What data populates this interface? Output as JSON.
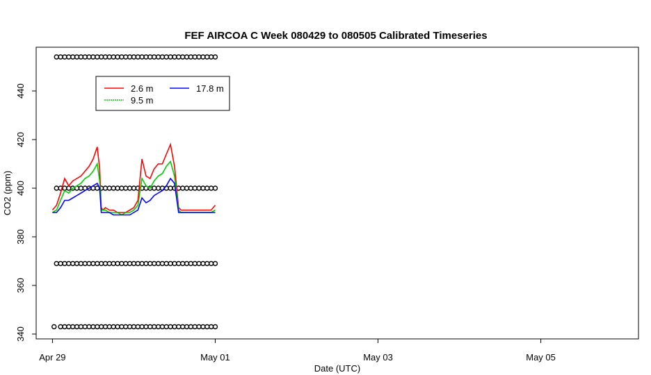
{
  "chart_data": {
    "type": "line",
    "title": "FEF AIRCOA C  Week 080429 to 080505  Calibrated Timeseries",
    "xlabel": "Date (UTC)",
    "ylabel": "CO2 (ppm)",
    "x_ticks": [
      "Apr 29",
      "May 01",
      "May 03",
      "May 05"
    ],
    "y_ticks": [
      340,
      360,
      380,
      400,
      420,
      440
    ],
    "xlim_days": [
      -0.2,
      7.2
    ],
    "ylim": [
      338,
      458
    ],
    "legend_position": "top-left",
    "series": [
      {
        "name": "2.6 m",
        "color": "#ff0000",
        "x": [
          0.0,
          0.05,
          0.1,
          0.15,
          0.2,
          0.25,
          0.3,
          0.35,
          0.4,
          0.45,
          0.5,
          0.55,
          0.58,
          0.6,
          0.62,
          0.65,
          0.7,
          0.75,
          0.8,
          0.85,
          0.9,
          0.95,
          1.0,
          1.05,
          1.1,
          1.15,
          1.2,
          1.25,
          1.3,
          1.35,
          1.4,
          1.45,
          1.5,
          1.55,
          1.58,
          1.6,
          1.62,
          1.65,
          1.7,
          1.75,
          1.8,
          1.85,
          1.9,
          1.95,
          2.0
        ],
        "values": [
          391,
          393,
          398,
          404,
          401,
          403,
          404,
          405,
          407,
          409,
          412,
          417,
          408,
          392,
          391,
          392,
          391,
          391,
          390,
          390,
          390,
          391,
          392,
          395,
          412,
          405,
          404,
          408,
          410,
          410,
          414,
          418,
          409,
          392,
          391,
          391,
          391,
          391,
          391,
          391,
          391,
          391,
          391,
          391,
          393
        ]
      },
      {
        "name": "9.5 m",
        "color": "#00cc00",
        "x": [
          0.0,
          0.05,
          0.1,
          0.15,
          0.2,
          0.25,
          0.3,
          0.35,
          0.4,
          0.45,
          0.5,
          0.55,
          0.58,
          0.6,
          0.62,
          0.65,
          0.7,
          0.75,
          0.8,
          0.85,
          0.9,
          0.95,
          1.0,
          1.05,
          1.1,
          1.15,
          1.2,
          1.25,
          1.3,
          1.35,
          1.4,
          1.45,
          1.5,
          1.55,
          1.58,
          1.6,
          1.62,
          1.65,
          1.7,
          1.75,
          1.8,
          1.85,
          1.9,
          1.95,
          2.0
        ],
        "values": [
          390,
          391,
          395,
          399,
          398,
          400,
          401,
          402,
          404,
          405,
          407,
          410,
          403,
          391,
          391,
          391,
          390,
          390,
          390,
          389,
          390,
          390,
          391,
          393,
          404,
          401,
          400,
          403,
          405,
          406,
          409,
          411,
          405,
          391,
          390,
          390,
          390,
          390,
          390,
          390,
          390,
          390,
          390,
          390,
          391
        ]
      },
      {
        "name": "17.8 m",
        "color": "#0000ff",
        "x": [
          0.0,
          0.05,
          0.1,
          0.15,
          0.2,
          0.25,
          0.3,
          0.35,
          0.4,
          0.45,
          0.5,
          0.55,
          0.58,
          0.6,
          0.62,
          0.65,
          0.7,
          0.75,
          0.8,
          0.85,
          0.9,
          0.95,
          1.0,
          1.05,
          1.1,
          1.15,
          1.2,
          1.25,
          1.3,
          1.35,
          1.4,
          1.45,
          1.5,
          1.55,
          1.58,
          1.6,
          1.62,
          1.65,
          1.7,
          1.75,
          1.8,
          1.85,
          1.9,
          1.95,
          2.0
        ],
        "values": [
          390,
          390,
          392,
          395,
          395,
          396,
          397,
          398,
          399,
          400,
          401,
          402,
          400,
          390,
          390,
          390,
          390,
          389,
          389,
          389,
          389,
          389,
          390,
          391,
          396,
          394,
          395,
          397,
          398,
          399,
          401,
          404,
          402,
          390,
          390,
          390,
          390,
          390,
          390,
          390,
          390,
          390,
          390,
          390,
          390
        ]
      }
    ],
    "flag_markers": {
      "marker": "open-circle",
      "rows": [
        {
          "y": 454,
          "x": [
            0.05,
            0.1,
            0.15,
            0.2,
            0.25,
            0.3,
            0.35,
            0.4,
            0.45,
            0.5,
            0.55,
            0.6,
            0.65,
            0.7,
            0.75,
            0.8,
            0.85,
            0.9,
            0.95,
            1.0,
            1.05,
            1.1,
            1.15,
            1.2,
            1.25,
            1.3,
            1.35,
            1.4,
            1.45,
            1.5,
            1.55,
            1.6,
            1.65,
            1.7,
            1.75,
            1.8,
            1.85,
            1.9,
            1.95,
            2.0
          ]
        },
        {
          "y": 400,
          "x": [
            0.05,
            0.1,
            0.15,
            0.2,
            0.25,
            0.3,
            0.35,
            0.4,
            0.45,
            0.5,
            0.55,
            0.6,
            0.65,
            0.7,
            0.75,
            0.8,
            0.85,
            0.9,
            0.95,
            1.0,
            1.05,
            1.1,
            1.15,
            1.2,
            1.25,
            1.3,
            1.35,
            1.4,
            1.45,
            1.5,
            1.55,
            1.6,
            1.65,
            1.7,
            1.75,
            1.8,
            1.85,
            1.9,
            1.95,
            2.0
          ]
        },
        {
          "y": 369,
          "x": [
            0.05,
            0.1,
            0.15,
            0.2,
            0.25,
            0.3,
            0.35,
            0.4,
            0.45,
            0.5,
            0.55,
            0.6,
            0.65,
            0.7,
            0.75,
            0.8,
            0.85,
            0.9,
            0.95,
            1.0,
            1.05,
            1.1,
            1.15,
            1.2,
            1.25,
            1.3,
            1.35,
            1.4,
            1.45,
            1.5,
            1.55,
            1.6,
            1.65,
            1.7,
            1.75,
            1.8,
            1.85,
            1.9,
            1.95,
            2.0
          ]
        },
        {
          "y": 343,
          "x": [
            0.02,
            0.1,
            0.15,
            0.2,
            0.25,
            0.3,
            0.35,
            0.4,
            0.45,
            0.5,
            0.55,
            0.6,
            0.65,
            0.7,
            0.75,
            0.8,
            0.85,
            0.9,
            0.95,
            1.0,
            1.05,
            1.1,
            1.15,
            1.2,
            1.25,
            1.3,
            1.35,
            1.4,
            1.45,
            1.5,
            1.55,
            1.6,
            1.65,
            1.7,
            1.75,
            1.8,
            1.85,
            1.9,
            1.95,
            2.0
          ]
        }
      ]
    }
  }
}
